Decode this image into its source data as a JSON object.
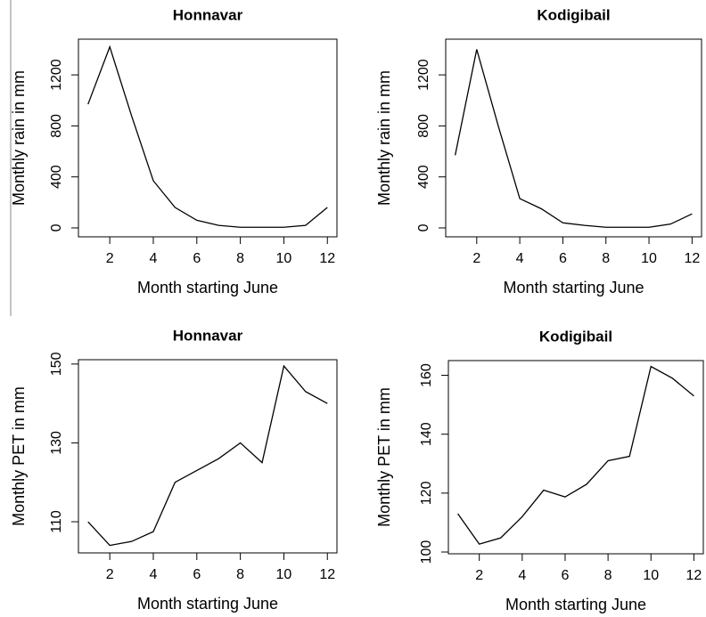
{
  "chart_data": [
    {
      "type": "line",
      "title": "Honnavar",
      "x_label": "Month starting June",
      "y_label": "Monthly rain in mm",
      "x": [
        1,
        2,
        3,
        4,
        5,
        6,
        7,
        8,
        9,
        10,
        11,
        12
      ],
      "values": [
        970,
        1420,
        880,
        370,
        160,
        60,
        20,
        5,
        5,
        5,
        20,
        160
      ],
      "color": "#000000",
      "xlim": [
        0.56,
        12.44
      ],
      "ylim": [
        -70,
        1480
      ],
      "xticks": [
        2,
        4,
        6,
        8,
        10,
        12
      ],
      "yticks": [
        0,
        400,
        800,
        1200
      ]
    },
    {
      "type": "line",
      "title": "Kodigibail",
      "x_label": "Month starting June",
      "y_label": "Monthly rain in mm",
      "x": [
        1,
        2,
        3,
        4,
        5,
        6,
        7,
        8,
        9,
        10,
        11,
        12
      ],
      "values": [
        570,
        1400,
        800,
        230,
        150,
        40,
        20,
        5,
        5,
        5,
        30,
        110
      ],
      "color": "#000000",
      "xlim": [
        0.56,
        12.44
      ],
      "ylim": [
        -70,
        1480
      ],
      "xticks": [
        2,
        4,
        6,
        8,
        10,
        12
      ],
      "yticks": [
        0,
        400,
        800,
        1200
      ]
    },
    {
      "type": "line",
      "title": "Honnavar",
      "x_label": "Month starting June",
      "y_label": "Monthly PET in mm",
      "x": [
        1,
        2,
        3,
        4,
        5,
        6,
        7,
        8,
        9,
        10,
        11,
        12
      ],
      "values": [
        110,
        104,
        105,
        107.5,
        120,
        123,
        126,
        130,
        125,
        149.5,
        143,
        140
      ],
      "color": "#000000",
      "xlim": [
        0.56,
        12.44
      ],
      "ylim": [
        102.1,
        151.1
      ],
      "xticks": [
        2,
        4,
        6,
        8,
        10,
        12
      ],
      "yticks": [
        110,
        130,
        150
      ]
    },
    {
      "type": "line",
      "title": "Kodigibail",
      "x_label": "Month starting June",
      "y_label": "Monthly PET in mm",
      "x": [
        1,
        2,
        3,
        4,
        5,
        6,
        7,
        8,
        9,
        10,
        11,
        12
      ],
      "values": [
        113,
        102.7,
        104.8,
        112,
        121,
        118.7,
        123,
        131,
        132.5,
        163,
        159,
        153
      ],
      "color": "#000000",
      "xlim": [
        0.56,
        12.44
      ],
      "ylim": [
        99.4,
        165
      ],
      "xticks": [
        2,
        4,
        6,
        8,
        10,
        12
      ],
      "yticks": [
        100,
        120,
        140,
        160
      ]
    }
  ]
}
